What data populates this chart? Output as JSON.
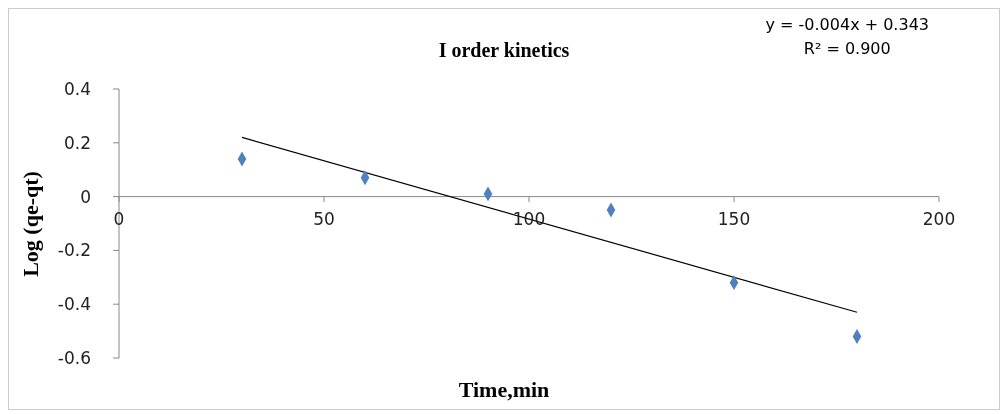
{
  "chart_data": {
    "type": "scatter",
    "title": "I order kinetics",
    "xlabel": "Time,min",
    "ylabel": "Log (qe-qt)",
    "annotations": [
      "y = -0.004x + 0.343",
      "R² = 0.900"
    ],
    "x": [
      30,
      60,
      90,
      120,
      150,
      180
    ],
    "series": [
      {
        "color": "#4f81bd",
        "values": [
          0.14,
          0.07,
          0.01,
          -0.05,
          -0.32,
          -0.52
        ],
        "marker": "diamond"
      },
      {
        "type": "line",
        "color": "#000000",
        "x": [
          30,
          180
        ],
        "values": [
          0.22,
          -0.43
        ],
        "marker": "none"
      }
    ],
    "xlim": [
      0,
      200
    ],
    "xticks": [
      0,
      50,
      100,
      150,
      200
    ],
    "ylim": [
      -0.6,
      0.4
    ],
    "yticks": [
      -0.6,
      -0.4,
      -0.2,
      0,
      0.2,
      0.4
    ]
  }
}
